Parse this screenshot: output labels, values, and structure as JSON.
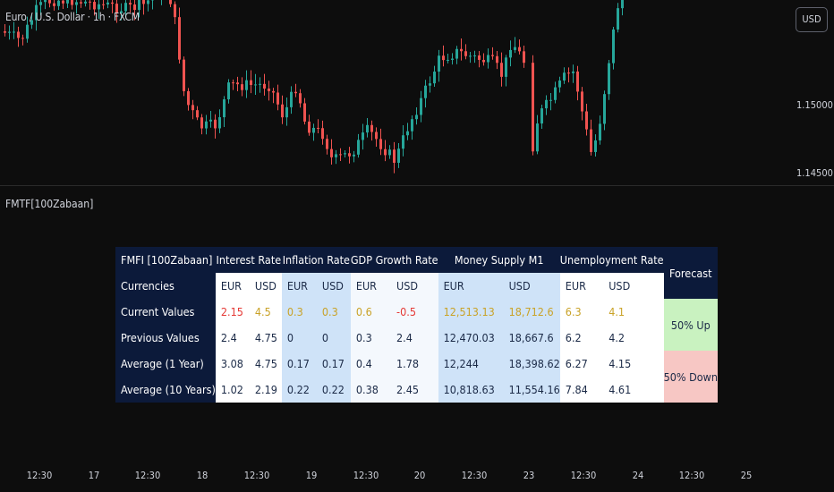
{
  "symbol": {
    "title": "Euro / U.S. Dollar · 1h · FXCM"
  },
  "currency_button": "USD",
  "price_axis": [
    "1.15000",
    "1.14500"
  ],
  "indicator": {
    "title": "FMTF[100Zabaan]"
  },
  "time_axis": [
    "12:30",
    "17",
    "12:30",
    "18",
    "12:30",
    "19",
    "12:30",
    "20",
    "12:30",
    "23",
    "12:30",
    "24",
    "12:30",
    "25"
  ],
  "colors": {
    "up": "#26a69a",
    "down": "#ef5350",
    "red_value": "#e53935",
    "gold_value": "#c9a227"
  },
  "table": {
    "title": "FMFI [100Zabaan]",
    "groups": {
      "interest": "Interest Rate",
      "inflation": "Inflation Rate",
      "gdp": "GDP Growth Rate",
      "m1": "Money Supply M1",
      "unemp": "Unemployment Rate"
    },
    "forecast_header": "Forecast",
    "rows": [
      {
        "label": "Currencies",
        "cells": [
          "EUR",
          "USD",
          "EUR",
          "USD",
          "EUR",
          "USD",
          "EUR",
          "USD",
          "EUR",
          "USD"
        ]
      },
      {
        "label": "Current Values",
        "cells": [
          "2.15",
          "4.5",
          "0.3",
          "0.3",
          "0.6",
          "-0.5",
          "12,513.13",
          "18,712.6",
          "6.3",
          "4.1"
        ]
      },
      {
        "label": "Previous Values",
        "cells": [
          "2.4",
          "4.75",
          "0",
          "0",
          "0.3",
          "2.4",
          "12,470.03",
          "18,667.6",
          "6.2",
          "4.2"
        ]
      },
      {
        "label": "Average (1 Year)",
        "cells": [
          "3.08",
          "4.75",
          "0.17",
          "0.17",
          "0.4",
          "1.78",
          "12,244",
          "18,398.62",
          "6.27",
          "4.15"
        ]
      },
      {
        "label": "Average (10 Years)",
        "cells": [
          "1.02",
          "2.19",
          "0.22",
          "0.22",
          "0.38",
          "2.45",
          "10,818.63",
          "11,554.16",
          "7.84",
          "4.61"
        ]
      }
    ],
    "current_value_colors": [
      "red",
      "gold",
      "gold",
      "gold",
      "gold",
      "red",
      "gold",
      "gold",
      "gold",
      "gold"
    ],
    "forecast_up": "50% Up",
    "forecast_down": "50% Down"
  }
}
